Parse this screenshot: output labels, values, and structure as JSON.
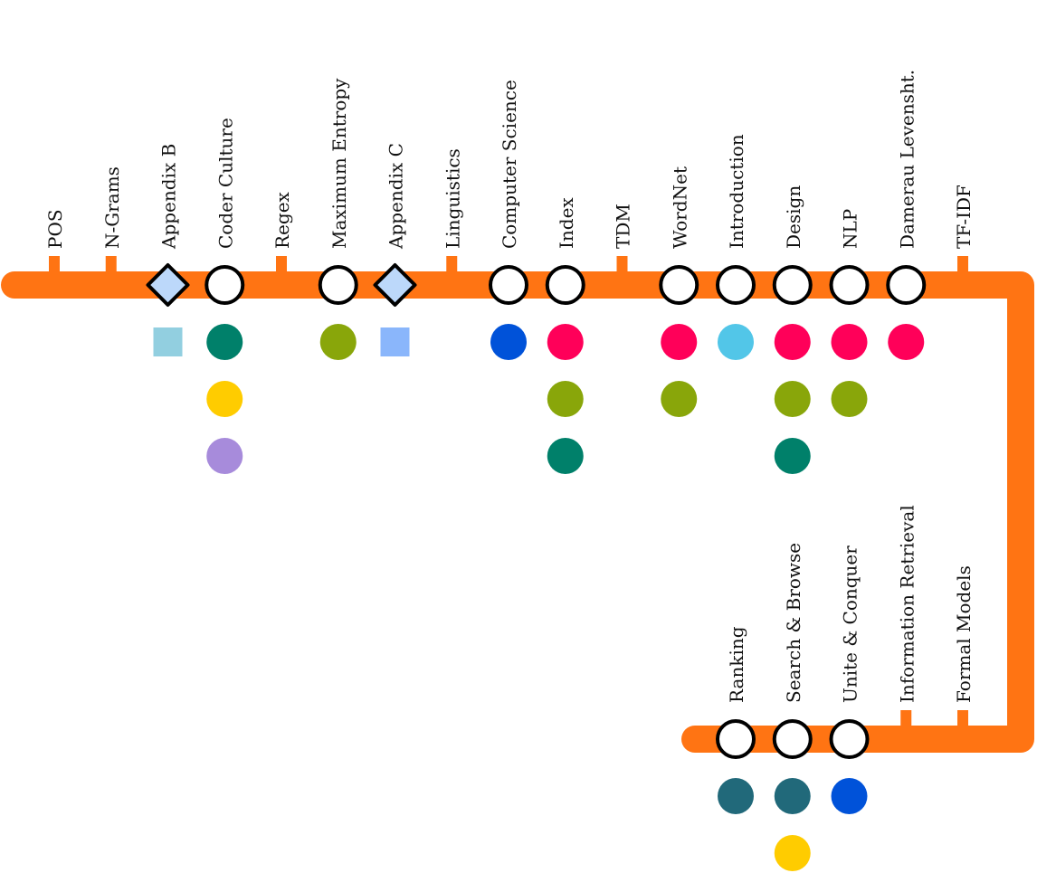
{
  "line_color": "#ff7413",
  "top_row": [
    {
      "label": "POS",
      "marker": "tick",
      "dots": []
    },
    {
      "label": "N-Grams",
      "marker": "tick",
      "dots": []
    },
    {
      "label": "Appendix B",
      "marker": "diamond",
      "dots": [
        {
          "shape": "square",
          "color": "#92cfe0"
        }
      ]
    },
    {
      "label": "Coder Culture",
      "marker": "circle",
      "dots": [
        {
          "shape": "circle",
          "color": "#00806a"
        },
        {
          "shape": "circle",
          "color": "#ffcc00"
        },
        {
          "shape": "circle",
          "color": "#a78bdb"
        }
      ]
    },
    {
      "label": "Regex",
      "marker": "tick",
      "dots": []
    },
    {
      "label": "Maximum Entropy",
      "marker": "circle",
      "dots": [
        {
          "shape": "circle",
          "color": "#89a60a"
        }
      ]
    },
    {
      "label": "Appendix C",
      "marker": "diamond",
      "dots": [
        {
          "shape": "square",
          "color": "#8ab6fb"
        }
      ]
    },
    {
      "label": "Linguistics",
      "marker": "tick",
      "dots": []
    },
    {
      "label": "Computer Science",
      "marker": "circle",
      "dots": [
        {
          "shape": "circle",
          "color": "#0052d9"
        }
      ]
    },
    {
      "label": "Index",
      "marker": "circle",
      "dots": [
        {
          "shape": "circle",
          "color": "#ff0059"
        },
        {
          "shape": "circle",
          "color": "#89a60a"
        },
        {
          "shape": "circle",
          "color": "#00806a"
        }
      ]
    },
    {
      "label": "TDM",
      "marker": "tick",
      "dots": []
    },
    {
      "label": "WordNet",
      "marker": "circle",
      "dots": [
        {
          "shape": "circle",
          "color": "#ff0059"
        },
        {
          "shape": "circle",
          "color": "#89a60a"
        }
      ]
    },
    {
      "label": "Introduction",
      "marker": "circle",
      "dots": [
        {
          "shape": "circle",
          "color": "#52c6e8"
        }
      ]
    },
    {
      "label": "Design",
      "marker": "circle",
      "dots": [
        {
          "shape": "circle",
          "color": "#ff0059"
        },
        {
          "shape": "circle",
          "color": "#89a60a"
        },
        {
          "shape": "circle",
          "color": "#00806a"
        }
      ]
    },
    {
      "label": "NLP",
      "marker": "circle",
      "dots": [
        {
          "shape": "circle",
          "color": "#ff0059"
        },
        {
          "shape": "circle",
          "color": "#89a60a"
        }
      ]
    },
    {
      "label": "Damerau Levensht.",
      "marker": "circle",
      "dots": [
        {
          "shape": "circle",
          "color": "#ff0059"
        }
      ]
    },
    {
      "label": "TF-IDF",
      "marker": "tick",
      "dots": []
    }
  ],
  "bottom_row": [
    {
      "label": "Ranking",
      "marker": "circle",
      "dots": [
        {
          "shape": "circle",
          "color": "#21697a"
        }
      ]
    },
    {
      "label": "Search & Browse",
      "marker": "circle",
      "dots": [
        {
          "shape": "circle",
          "color": "#21697a"
        },
        {
          "shape": "circle",
          "color": "#ffcc00"
        }
      ]
    },
    {
      "label": "Unite & Conquer",
      "marker": "circle",
      "dots": [
        {
          "shape": "circle",
          "color": "#0052d9"
        }
      ]
    },
    {
      "label": "Information Retrieval",
      "marker": "tick",
      "dots": []
    },
    {
      "label": "Formal Models",
      "marker": "tick",
      "dots": []
    }
  ]
}
